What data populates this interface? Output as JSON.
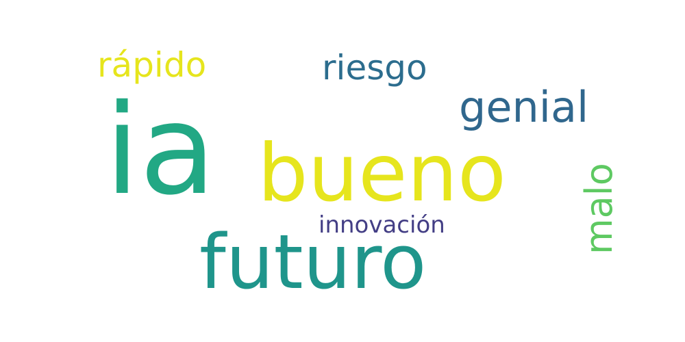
{
  "word_cloud": {
    "words": [
      {
        "text": "ia",
        "color": "#22a884"
      },
      {
        "text": "bueno",
        "color": "#e6e51d"
      },
      {
        "text": "futuro",
        "color": "#1f958b"
      },
      {
        "text": "rápido",
        "color": "#e6e51d"
      },
      {
        "text": "riesgo",
        "color": "#2c6d8e"
      },
      {
        "text": "genial",
        "color": "#30678d"
      },
      {
        "text": "innovación",
        "color": "#433e85"
      },
      {
        "text": "malo",
        "color": "#5ec962"
      }
    ]
  }
}
